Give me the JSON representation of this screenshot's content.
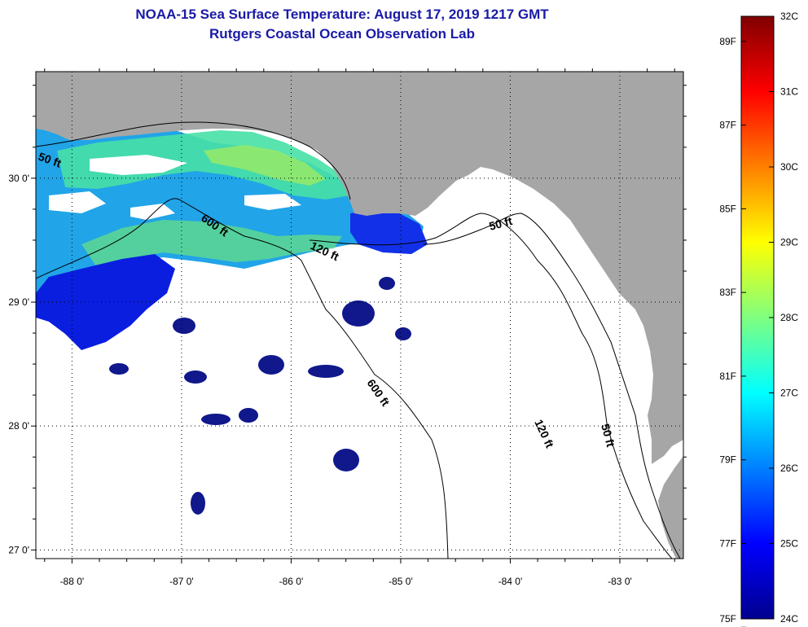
{
  "header": {
    "title": "NOAA-15 Sea Surface Temperature:  August 17, 2019 1217 GMT",
    "subtitle": "Rutgers Coastal Ocean Observation Lab"
  },
  "map": {
    "longitude_labels": [
      "-88 0'",
      "-87 0'",
      "-86 0'",
      "-85 0'",
      "-84 0'",
      "-83 0'"
    ],
    "latitude_labels": [
      "30 0'",
      "29 0'",
      "28 0'",
      "27 0'"
    ],
    "lon_values": [
      -88,
      -87,
      -86,
      -85,
      -84,
      -83
    ],
    "lat_values": [
      30,
      29,
      28,
      27
    ],
    "lon_range": [
      -88.33,
      -82.42
    ],
    "lat_range": [
      26.93,
      30.86
    ],
    "contour_labels": [
      {
        "id": "c50w",
        "text": "50 ft"
      },
      {
        "id": "c600a",
        "text": "600 ft"
      },
      {
        "id": "c120a",
        "text": "120 ft"
      },
      {
        "id": "c50e",
        "text": "50 ft"
      },
      {
        "id": "c600b",
        "text": "600 ft"
      },
      {
        "id": "c120b",
        "text": "120 ft"
      },
      {
        "id": "c50s",
        "text": "50 ft"
      }
    ],
    "colors": {
      "land": "#a6a6a6",
      "ocean_no_data": "#ffffff"
    }
  },
  "colorbar": {
    "celsius_labels": [
      "32C",
      "31C",
      "30C",
      "29C",
      "28C",
      "27C",
      "26C",
      "25C",
      "24C"
    ],
    "fahrenheit_labels": [
      "89F",
      "87F",
      "85F",
      "83F",
      "81F",
      "79F",
      "77F",
      "75F"
    ],
    "celsius_values": [
      32,
      31,
      30,
      29,
      28,
      27,
      26,
      25,
      24
    ],
    "fahrenheit_values": [
      89,
      87,
      85,
      83,
      81,
      79,
      77,
      75
    ],
    "range_c": [
      24,
      32
    ]
  }
}
